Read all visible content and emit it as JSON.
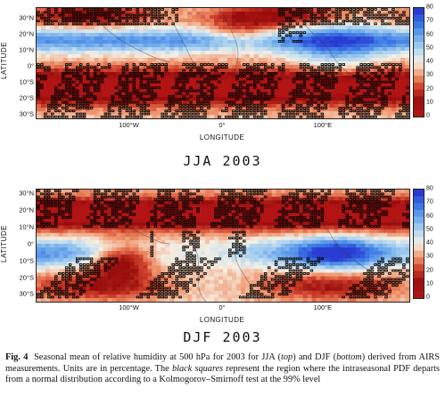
{
  "panels": [
    {
      "id": "jja",
      "title": "JJA 2003",
      "y_axis_label": "LATITUDE",
      "x_axis_label": "LONGITUDE",
      "lat_ticks": [
        "30°N",
        "20°N",
        "10°N",
        "0°",
        "10°S",
        "20°S",
        "30°S"
      ],
      "lon_ticks": [
        "100°W",
        "0°",
        "100°E"
      ],
      "colorbar_ticks": [
        "80",
        "70",
        "60",
        "50",
        "40",
        "30",
        "20",
        "10",
        "0"
      ]
    },
    {
      "id": "djf",
      "title": "DJF 2003",
      "y_axis_label": "LATITUDE",
      "x_axis_label": "LONGITUDE",
      "lat_ticks": [
        "30°N",
        "20°N",
        "10°N",
        "0°",
        "10°S",
        "20°S",
        "30°S"
      ],
      "lon_ticks": [
        "100°W",
        "0°",
        "100°E"
      ],
      "colorbar_ticks": [
        "80",
        "70",
        "60",
        "50",
        "40",
        "30",
        "20",
        "10",
        "0"
      ]
    }
  ],
  "caption": {
    "label": "Fig. 4",
    "text_1": "Seasonal mean of relative humidity at 500 hPa for 2003 for JJA (",
    "top": "top",
    "text_2": ") and DJF (",
    "bottom": "bottom",
    "text_3": ") derived from AIRS measurements. Units are in percentage. The ",
    "black_squares": "black squares",
    "text_4": " represent the region where the intraseasonal PDF departs from a normal distribution according to a Kolmogorov–Smirnoff test at the 99% level"
  },
  "colors": {
    "dry": "#8b1010",
    "mid": "#f2f0e6",
    "wet": "#2a52d8"
  }
}
